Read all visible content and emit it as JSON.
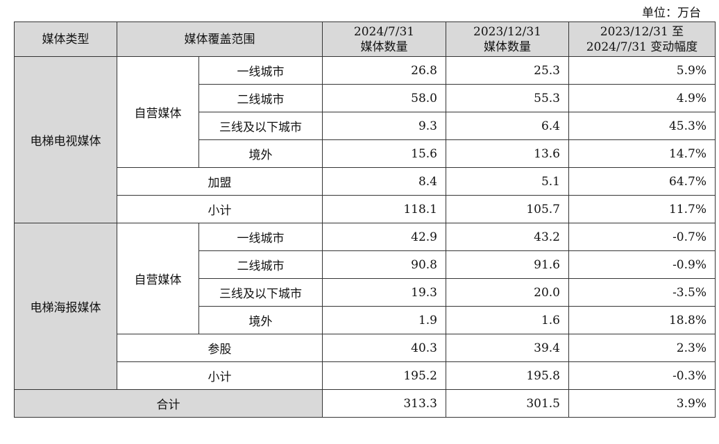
{
  "unit_label": "单位：万台",
  "header": {
    "type": "媒体类型",
    "range": "媒体覆盖范围",
    "col_2024": [
      "2024/7/31",
      "媒体数量"
    ],
    "col_2023": [
      "2023/12/31",
      "媒体数量"
    ],
    "col_change": [
      "2023/12/31 至",
      "2024/7/31 变动幅度"
    ]
  },
  "groups": [
    {
      "name": "电梯电视媒体",
      "self_label": "自营媒体",
      "self_rows": [
        {
          "label": "一线城市",
          "v2024": "26.8",
          "v2023": "25.3",
          "change": "5.9%"
        },
        {
          "label": "二线城市",
          "v2024": "58.0",
          "v2023": "55.3",
          "change": "4.9%"
        },
        {
          "label": "三线及以下城市",
          "v2024": "9.3",
          "v2023": "6.4",
          "change": "45.3%"
        },
        {
          "label": "境外",
          "v2024": "15.6",
          "v2023": "13.6",
          "change": "14.7%"
        }
      ],
      "extra": {
        "label": "加盟",
        "v2024": "8.4",
        "v2023": "5.1",
        "change": "64.7%"
      },
      "subtotal": {
        "label": "小计",
        "v2024": "118.1",
        "v2023": "105.7",
        "change": "11.7%"
      }
    },
    {
      "name": "电梯海报媒体",
      "self_label": "自营媒体",
      "self_rows": [
        {
          "label": "一线城市",
          "v2024": "42.9",
          "v2023": "43.2",
          "change": "-0.7%"
        },
        {
          "label": "二线城市",
          "v2024": "90.8",
          "v2023": "91.6",
          "change": "-0.9%"
        },
        {
          "label": "三线及以下城市",
          "v2024": "19.3",
          "v2023": "20.0",
          "change": "-3.5%"
        },
        {
          "label": "境外",
          "v2024": "1.9",
          "v2023": "1.6",
          "change": "18.8%"
        }
      ],
      "extra": {
        "label": "参股",
        "v2024": "40.3",
        "v2023": "39.4",
        "change": "2.3%"
      },
      "subtotal": {
        "label": "小计",
        "v2024": "195.2",
        "v2023": "195.8",
        "change": "-0.3%"
      }
    }
  ],
  "total": {
    "label": "合计",
    "v2024": "313.3",
    "v2023": "301.5",
    "change": "3.9%"
  }
}
